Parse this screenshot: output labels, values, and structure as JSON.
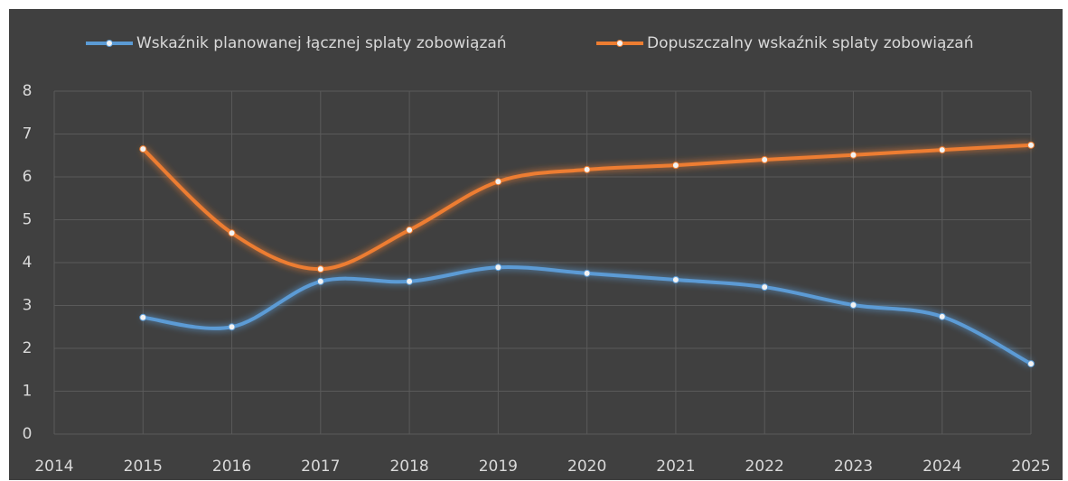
{
  "chart_data": {
    "type": "line",
    "x": [
      2015,
      2016,
      2017,
      2018,
      2019,
      2020,
      2021,
      2022,
      2023,
      2024,
      2025
    ],
    "series": [
      {
        "name": "Wskaźnik planowanej łącznej splaty zobowiązań",
        "color": "#5b9bd5",
        "values": [
          2.72,
          2.5,
          3.56,
          3.56,
          3.89,
          3.75,
          3.6,
          3.43,
          3.01,
          2.74,
          1.64
        ]
      },
      {
        "name": "Dopuszczalny wskaźnik splaty zobowiązań",
        "color": "#ed7d31",
        "values": [
          6.65,
          4.69,
          3.85,
          4.76,
          5.89,
          6.17,
          6.27,
          6.4,
          6.51,
          6.63,
          6.74
        ]
      }
    ],
    "xlim": [
      2014,
      2025
    ],
    "xticks": [
      2014,
      2015,
      2016,
      2017,
      2018,
      2019,
      2020,
      2021,
      2022,
      2023,
      2024,
      2025
    ],
    "ylim": [
      0,
      8
    ],
    "yticks": [
      0,
      1,
      2,
      3,
      4,
      5,
      6,
      7,
      8
    ],
    "grid": true,
    "smooth": true,
    "legend": "top"
  }
}
